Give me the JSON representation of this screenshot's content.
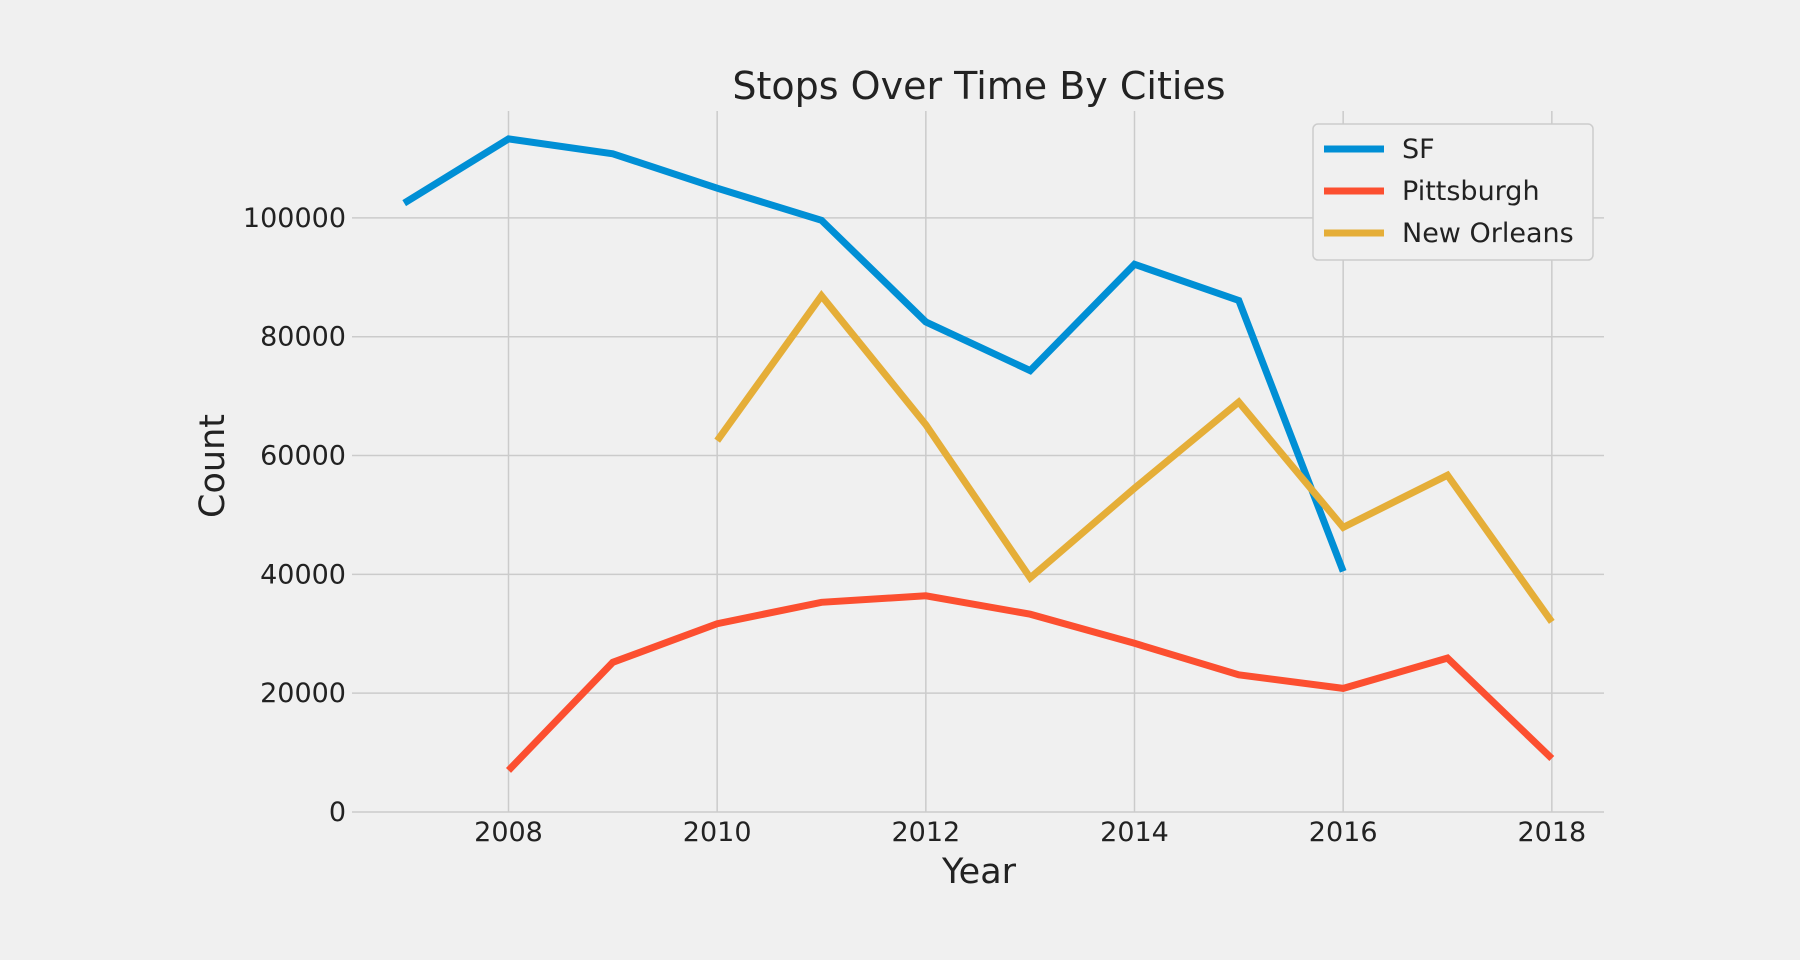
{
  "chart_data": {
    "type": "line",
    "title": "Stops Over Time By Cities",
    "xlabel": "Year",
    "ylabel": "Count",
    "xlim": [
      2006.5,
      2018.5
    ],
    "ylim": [
      0,
      118000
    ],
    "x_ticks": [
      2008,
      2010,
      2012,
      2014,
      2016,
      2018
    ],
    "y_ticks": [
      0,
      20000,
      40000,
      60000,
      80000,
      100000
    ],
    "grid": true,
    "legend_position": "top-right",
    "series": [
      {
        "name": "SF",
        "color": "#008fd5",
        "points": [
          [
            2007,
            102500
          ],
          [
            2008,
            113300
          ],
          [
            2009,
            110800
          ],
          [
            2010,
            105000
          ],
          [
            2011,
            99600
          ],
          [
            2012,
            82500
          ],
          [
            2013,
            74300
          ],
          [
            2014,
            92200
          ],
          [
            2015,
            86100
          ],
          [
            2016,
            40500
          ]
        ]
      },
      {
        "name": "Pittsburgh",
        "color": "#fc4f30",
        "points": [
          [
            2008,
            7000
          ],
          [
            2009,
            25200
          ],
          [
            2010,
            31700
          ],
          [
            2011,
            35300
          ],
          [
            2012,
            36400
          ],
          [
            2013,
            33300
          ],
          [
            2014,
            28400
          ],
          [
            2015,
            23100
          ],
          [
            2016,
            20800
          ],
          [
            2017,
            25900
          ],
          [
            2018,
            9000
          ]
        ]
      },
      {
        "name": "New Orleans",
        "color": "#e5ae38",
        "points": [
          [
            2010,
            62500
          ],
          [
            2011,
            86900
          ],
          [
            2012,
            65200
          ],
          [
            2013,
            39400
          ],
          [
            2014,
            54500
          ],
          [
            2015,
            69000
          ],
          [
            2016,
            47900
          ],
          [
            2017,
            56700
          ],
          [
            2018,
            32000
          ]
        ]
      }
    ]
  }
}
